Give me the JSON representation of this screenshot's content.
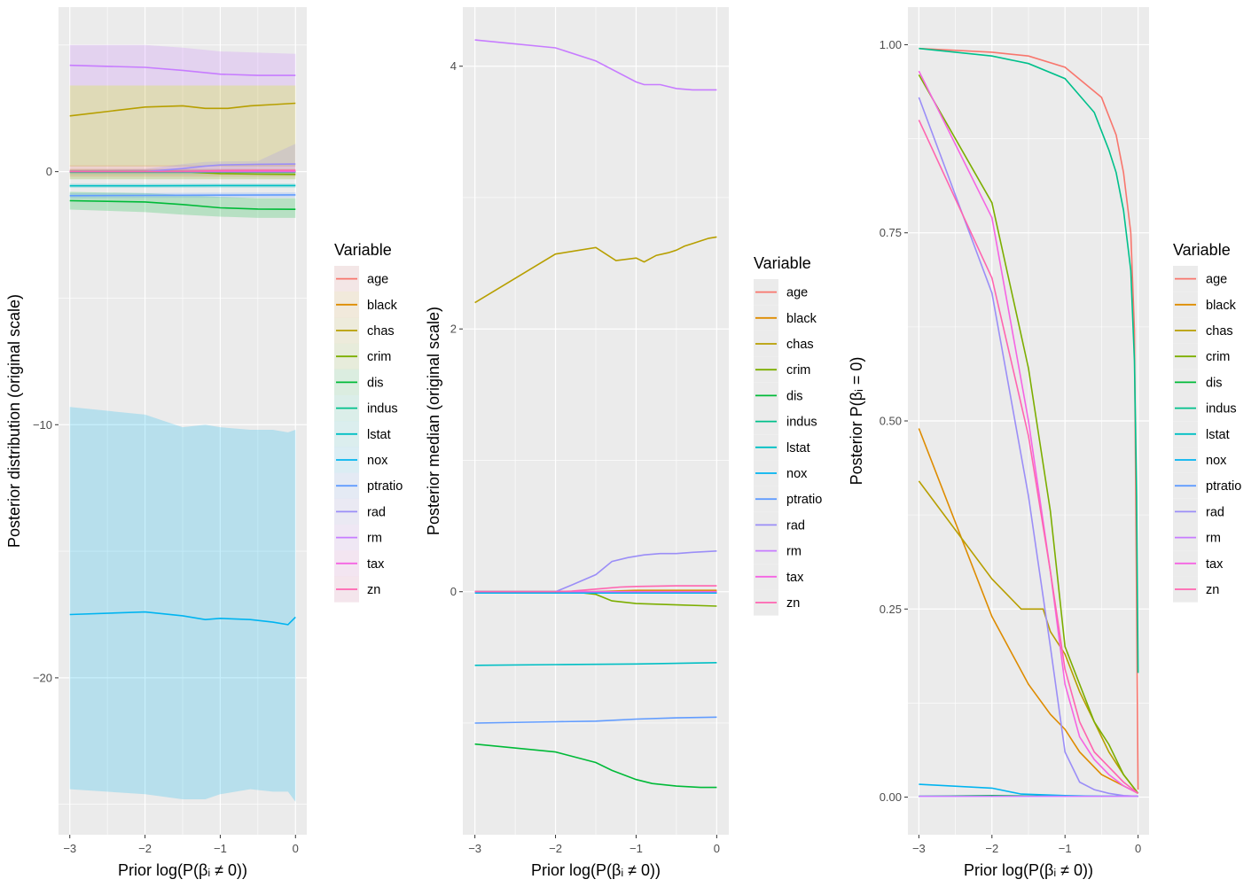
{
  "variables": [
    "age",
    "black",
    "chas",
    "crim",
    "dis",
    "indus",
    "lstat",
    "nox",
    "ptratio",
    "rad",
    "rm",
    "tax",
    "zn"
  ],
  "colors": {
    "age": "#F8766D",
    "black": "#DE8C00",
    "chas": "#B79F00",
    "crim": "#7CAE00",
    "dis": "#00BA38",
    "indus": "#00C08B",
    "lstat": "#00BFC4",
    "nox": "#00B4F0",
    "ptratio": "#619CFF",
    "rad": "#9B8EF7",
    "rm": "#C77CFF",
    "tax": "#F564E3",
    "zn": "#FF64B0"
  },
  "legend_title": "Variable",
  "chart_data": [
    {
      "type": "line",
      "bands": true,
      "xlabel": "Prior log(P(βᵢ ≠ 0))",
      "ylabel": "Posterior distribution (original scale)",
      "xlim": [
        -3.15,
        0.15
      ],
      "ylim": [
        -26.2,
        6.5
      ],
      "xticks": [
        -3,
        -2,
        -1,
        0
      ],
      "yticks": [
        0,
        -10,
        -20
      ],
      "ytick_labels": [
        "0",
        "−10",
        "−20"
      ],
      "series": [
        {
          "name": "age",
          "x": [
            -3,
            -2,
            -1,
            0
          ],
          "y": [
            0,
            0,
            0,
            0
          ],
          "lo": [
            -0.2,
            -0.2,
            -0.2,
            -0.2
          ],
          "hi": [
            0.25,
            0.25,
            0.25,
            0.3
          ]
        },
        {
          "name": "black",
          "x": [
            -3,
            -2,
            -1,
            0
          ],
          "y": [
            0,
            0,
            0,
            0.01
          ],
          "lo": [
            -0.05,
            -0.05,
            -0.05,
            -0.05
          ],
          "hi": [
            0.05,
            0.05,
            0.05,
            0.05
          ]
        },
        {
          "name": "chas",
          "x": [
            -3,
            -2,
            -1.5,
            -1.2,
            -0.9,
            -0.6,
            -0.3,
            0
          ],
          "y": [
            2.2,
            2.55,
            2.6,
            2.5,
            2.5,
            2.6,
            2.65,
            2.7
          ],
          "lo": [
            0.2,
            0.2,
            0.2,
            0.2,
            0.2,
            0.2,
            0.2,
            0.2
          ],
          "hi": [
            3.4,
            3.4,
            3.4,
            3.4,
            3.4,
            3.4,
            3.4,
            3.4
          ]
        },
        {
          "name": "crim",
          "x": [
            -3,
            -2,
            -1.5,
            -1,
            -0.5,
            0
          ],
          "y": [
            0,
            0,
            0,
            -0.08,
            -0.1,
            -0.11
          ],
          "lo": [
            -0.3,
            -0.3,
            -0.3,
            -0.3,
            -0.3,
            -0.3
          ],
          "hi": [
            0.1,
            0.1,
            0.1,
            0.1,
            0.1,
            0.1
          ]
        },
        {
          "name": "dis",
          "x": [
            -3,
            -2,
            -1.5,
            -1,
            -0.5,
            0
          ],
          "y": [
            -1.15,
            -1.2,
            -1.3,
            -1.43,
            -1.48,
            -1.49
          ],
          "lo": [
            -1.5,
            -1.6,
            -1.7,
            -1.78,
            -1.83,
            -1.83
          ],
          "hi": [
            -0.8,
            -0.85,
            -0.92,
            -1.0,
            -1.05,
            -1.05
          ]
        },
        {
          "name": "indus",
          "x": [
            -3,
            -2,
            -1,
            0
          ],
          "y": [
            -0.02,
            -0.02,
            -0.02,
            -0.02
          ],
          "lo": [
            -0.1,
            -0.1,
            -0.1,
            -0.1
          ],
          "hi": [
            0.06,
            0.06,
            0.06,
            0.06
          ]
        },
        {
          "name": "lstat",
          "x": [
            -3,
            -2,
            -1,
            0
          ],
          "y": [
            -0.56,
            -0.56,
            -0.55,
            -0.55
          ],
          "lo": [
            -0.64,
            -0.64,
            -0.63,
            -0.63
          ],
          "hi": [
            -0.48,
            -0.48,
            -0.47,
            -0.47
          ]
        },
        {
          "name": "nox",
          "x": [
            -3,
            -2,
            -1.5,
            -1.2,
            -1,
            -0.6,
            -0.3,
            -0.1,
            0
          ],
          "y": [
            -17.5,
            -17.4,
            -17.55,
            -17.7,
            -17.65,
            -17.7,
            -17.8,
            -17.9,
            -17.6
          ],
          "lo": [
            -24.4,
            -24.6,
            -24.8,
            -24.8,
            -24.6,
            -24.4,
            -24.5,
            -24.5,
            -24.9
          ],
          "hi": [
            -9.3,
            -9.6,
            -10.1,
            -10.0,
            -10.1,
            -10.2,
            -10.2,
            -10.3,
            -10.2
          ]
        },
        {
          "name": "ptratio",
          "x": [
            -3,
            -2,
            -1,
            0
          ],
          "y": [
            -0.95,
            -0.94,
            -0.93,
            -0.92
          ],
          "lo": [
            -1.05,
            -1.04,
            -1.03,
            -1.02
          ],
          "hi": [
            -0.85,
            -0.84,
            -0.83,
            -0.82
          ]
        },
        {
          "name": "rad",
          "x": [
            -3,
            -2,
            -1.5,
            -1.2,
            -1,
            -0.5,
            0
          ],
          "y": [
            0,
            0,
            0.12,
            0.22,
            0.26,
            0.29,
            0.3
          ],
          "lo": [
            -0.05,
            -0.05,
            -0.05,
            0,
            0.05,
            0.1,
            0.1
          ],
          "hi": [
            0.05,
            0.1,
            0.3,
            0.38,
            0.4,
            0.42,
            1.1
          ]
        },
        {
          "name": "rm",
          "x": [
            -3,
            -2,
            -1.5,
            -1,
            -0.5,
            0
          ],
          "y": [
            4.2,
            4.12,
            4.0,
            3.85,
            3.8,
            3.8
          ],
          "lo": [
            3.4,
            3.4,
            3.4,
            3.4,
            3.4,
            3.4
          ],
          "hi": [
            5.0,
            5.0,
            4.9,
            4.75,
            4.7,
            4.65
          ]
        },
        {
          "name": "tax",
          "x": [
            -3,
            -2,
            -1,
            0
          ],
          "y": [
            0,
            0,
            0,
            0
          ],
          "lo": [
            -0.01,
            -0.01,
            -0.01,
            -0.01
          ],
          "hi": [
            0.01,
            0.01,
            0.01,
            0.01
          ]
        },
        {
          "name": "zn",
          "x": [
            -3,
            -2,
            -1.5,
            -1,
            -0.5,
            0
          ],
          "y": [
            0,
            0,
            0.01,
            0.04,
            0.05,
            0.05
          ],
          "lo": [
            -0.02,
            -0.02,
            -0.02,
            -0.02,
            -0.02,
            -0.02
          ],
          "hi": [
            0.1,
            0.1,
            0.1,
            0.1,
            0.1,
            0.1
          ]
        }
      ]
    },
    {
      "type": "line",
      "bands": false,
      "xlabel": "Prior log(P(βᵢ ≠ 0))",
      "ylabel": "Posterior median (original scale)",
      "xlim": [
        -3.15,
        0.15
      ],
      "ylim": [
        -1.85,
        4.45
      ],
      "xticks": [
        -3,
        -2,
        -1,
        0
      ],
      "yticks": [
        4,
        2,
        0
      ],
      "ytick_labels": [
        "4",
        "2",
        "0"
      ],
      "series": [
        {
          "name": "age",
          "x": [
            -3,
            -2,
            -1.5,
            -1,
            0
          ],
          "y": [
            0,
            0,
            0,
            0,
            0
          ]
        },
        {
          "name": "black",
          "x": [
            -3,
            -2,
            -1.5,
            -1,
            0
          ],
          "y": [
            0,
            0,
            0,
            0.01,
            0.01
          ]
        },
        {
          "name": "chas",
          "x": [
            -3,
            -2,
            -1.5,
            -1.25,
            -1,
            -0.9,
            -0.75,
            -0.6,
            -0.5,
            -0.4,
            -0.3,
            -0.2,
            -0.1,
            0
          ],
          "y": [
            2.2,
            2.57,
            2.62,
            2.52,
            2.54,
            2.51,
            2.56,
            2.58,
            2.6,
            2.63,
            2.65,
            2.67,
            2.69,
            2.7
          ]
        },
        {
          "name": "crim",
          "x": [
            -3,
            -2,
            -1.8,
            -1.5,
            -1.3,
            -1,
            -0.5,
            0
          ],
          "y": [
            0,
            0,
            0,
            -0.02,
            -0.07,
            -0.09,
            -0.1,
            -0.11
          ]
        },
        {
          "name": "dis",
          "x": [
            -3,
            -2,
            -1.5,
            -1.3,
            -1,
            -0.8,
            -0.5,
            -0.2,
            0
          ],
          "y": [
            -1.16,
            -1.22,
            -1.3,
            -1.36,
            -1.43,
            -1.46,
            -1.48,
            -1.49,
            -1.49
          ]
        },
        {
          "name": "indus",
          "x": [
            -3,
            -2,
            -1.5,
            -1,
            0
          ],
          "y": [
            0,
            0,
            -0.01,
            -0.01,
            -0.01
          ]
        },
        {
          "name": "lstat",
          "x": [
            -3,
            -2,
            -1,
            0
          ],
          "y": [
            -0.56,
            -0.555,
            -0.55,
            -0.54
          ]
        },
        {
          "name": "nox",
          "x": [
            -3,
            -2,
            -1,
            -0.5,
            0
          ],
          "y": [
            -0.01,
            -0.01,
            -0.01,
            -0.01,
            -0.01
          ]
        },
        {
          "name": "ptratio",
          "x": [
            -3,
            -2,
            -1.5,
            -1,
            -0.5,
            0
          ],
          "y": [
            -1.0,
            -0.99,
            -0.985,
            -0.97,
            -0.96,
            -0.955
          ]
        },
        {
          "name": "rad",
          "x": [
            -3,
            -2,
            -1.8,
            -1.5,
            -1.3,
            -1.1,
            -0.9,
            -0.7,
            -0.5,
            -0.3,
            0
          ],
          "y": [
            0,
            0,
            0.05,
            0.13,
            0.23,
            0.26,
            0.28,
            0.29,
            0.29,
            0.3,
            0.31
          ]
        },
        {
          "name": "rm",
          "x": [
            -3,
            -2,
            -1.5,
            -1,
            -0.9,
            -0.7,
            -0.5,
            -0.3,
            -0.1,
            0
          ],
          "y": [
            4.2,
            4.14,
            4.04,
            3.88,
            3.86,
            3.86,
            3.83,
            3.82,
            3.82,
            3.82
          ]
        },
        {
          "name": "tax",
          "x": [
            -3,
            -2,
            -1,
            0
          ],
          "y": [
            0,
            0,
            0,
            0
          ]
        },
        {
          "name": "zn",
          "x": [
            -3,
            -2,
            -1.8,
            -1.5,
            -1.2,
            -1,
            -0.5,
            0
          ],
          "y": [
            0,
            0,
            0.005,
            0.02,
            0.035,
            0.04,
            0.045,
            0.045
          ]
        }
      ]
    },
    {
      "type": "line",
      "bands": false,
      "xlabel": "Prior log(P(βᵢ ≠ 0))",
      "ylabel": "Posterior P(βᵢ = 0)",
      "xlim": [
        -3.15,
        0.15
      ],
      "ylim": [
        -0.05,
        1.05
      ],
      "xticks": [
        -3,
        -2,
        -1,
        0
      ],
      "yticks": [
        1.0,
        0.75,
        0.5,
        0.25,
        0.0
      ],
      "ytick_labels": [
        "1.00",
        "0.75",
        "0.50",
        "0.25",
        "0.00"
      ],
      "series": [
        {
          "name": "age",
          "x": [
            -3,
            -2,
            -1.5,
            -1,
            -0.5,
            -0.3,
            -0.2,
            -0.1,
            -0.05,
            0
          ],
          "y": [
            0.995,
            0.99,
            0.985,
            0.97,
            0.93,
            0.88,
            0.83,
            0.75,
            0.62,
            0.01
          ]
        },
        {
          "name": "black",
          "x": [
            -3,
            -2,
            -1.5,
            -1.2,
            -1,
            -0.8,
            -0.5,
            -0.2,
            0
          ],
          "y": [
            0.49,
            0.24,
            0.15,
            0.11,
            0.09,
            0.06,
            0.03,
            0.015,
            0.005
          ]
        },
        {
          "name": "chas",
          "x": [
            -3,
            -2,
            -1.6,
            -1.3,
            -1.2,
            -1,
            -0.8,
            -0.6,
            -0.4,
            -0.2,
            0
          ],
          "y": [
            0.42,
            0.29,
            0.25,
            0.25,
            0.22,
            0.19,
            0.14,
            0.1,
            0.06,
            0.03,
            0.005
          ]
        },
        {
          "name": "crim",
          "x": [
            -3,
            -2,
            -1.5,
            -1.2,
            -1,
            -0.8,
            -0.6,
            -0.4,
            -0.2,
            0
          ],
          "y": [
            0.96,
            0.79,
            0.57,
            0.38,
            0.2,
            0.15,
            0.1,
            0.07,
            0.03,
            0.005
          ]
        },
        {
          "name": "dis",
          "x": [
            -3,
            -2,
            -1,
            0
          ],
          "y": [
            0.001,
            0.002,
            0.001,
            0.001
          ]
        },
        {
          "name": "indus",
          "x": [
            -3,
            -2,
            -1.5,
            -1,
            -0.6,
            -0.4,
            -0.3,
            -0.2,
            -0.1,
            -0.05,
            -0.02,
            0
          ],
          "y": [
            0.995,
            0.985,
            0.975,
            0.955,
            0.91,
            0.86,
            0.83,
            0.78,
            0.7,
            0.58,
            0.4,
            0.165
          ]
        },
        {
          "name": "lstat",
          "x": [
            -3,
            -2,
            -1,
            0
          ],
          "y": [
            0.001,
            0.001,
            0.001,
            0.001
          ]
        },
        {
          "name": "nox",
          "x": [
            -3,
            -2,
            -1.6,
            -1,
            -0.5,
            0
          ],
          "y": [
            0.017,
            0.012,
            0.004,
            0.002,
            0.001,
            0.001
          ]
        },
        {
          "name": "ptratio",
          "x": [
            -3,
            -2,
            -1,
            0
          ],
          "y": [
            0.001,
            0.001,
            0.001,
            0.001
          ]
        },
        {
          "name": "rad",
          "x": [
            -3,
            -2,
            -1.5,
            -1.2,
            -1,
            -0.8,
            -0.6,
            -0.4,
            -0.2,
            0
          ],
          "y": [
            0.93,
            0.67,
            0.4,
            0.2,
            0.06,
            0.02,
            0.01,
            0.005,
            0.002,
            0.001
          ]
        },
        {
          "name": "rm",
          "x": [
            -3,
            -2,
            -1,
            0
          ],
          "y": [
            0.001,
            0.001,
            0.001,
            0.001
          ]
        },
        {
          "name": "tax",
          "x": [
            -3,
            -2,
            -1.5,
            -1.2,
            -1,
            -0.8,
            -0.6,
            -0.4,
            -0.2,
            0
          ],
          "y": [
            0.965,
            0.77,
            0.5,
            0.3,
            0.15,
            0.08,
            0.05,
            0.03,
            0.015,
            0.005
          ]
        },
        {
          "name": "zn",
          "x": [
            -3,
            -2,
            -1.5,
            -1.2,
            -1,
            -0.8,
            -0.6,
            -0.4,
            -0.2,
            0
          ],
          "y": [
            0.9,
            0.69,
            0.48,
            0.3,
            0.17,
            0.1,
            0.06,
            0.04,
            0.02,
            0.005
          ]
        }
      ]
    }
  ]
}
